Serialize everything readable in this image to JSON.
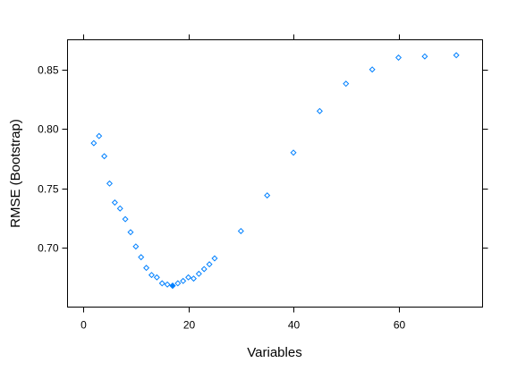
{
  "chart_data": {
    "type": "scatter",
    "xlabel": "Variables",
    "ylabel": "RMSE (Bootstrap)",
    "xlim": [
      -3,
      76
    ],
    "ylim": [
      0.65,
      0.875
    ],
    "x_ticks": [
      0,
      20,
      40,
      60
    ],
    "x_tick_labels": [
      "0",
      "20",
      "40",
      "60"
    ],
    "y_ticks": [
      0.7,
      0.75,
      0.8,
      0.85
    ],
    "y_tick_labels": [
      "0.70",
      "0.75",
      "0.80",
      "0.85"
    ],
    "grid": false,
    "series": [
      {
        "marker": "open-diamond",
        "color": "#0080ff",
        "x": [
          2,
          3,
          4,
          5,
          6,
          7,
          8,
          9,
          10,
          11,
          12,
          13,
          14,
          15,
          16,
          17,
          18,
          19,
          20,
          21,
          22,
          23,
          24,
          25,
          30,
          35,
          40,
          45,
          50,
          55,
          60,
          65,
          71
        ],
        "y": [
          0.788,
          0.794,
          0.777,
          0.754,
          0.738,
          0.733,
          0.724,
          0.713,
          0.701,
          0.692,
          0.683,
          0.677,
          0.675,
          0.67,
          0.669,
          0.668,
          0.67,
          0.672,
          0.675,
          0.674,
          0.678,
          0.682,
          0.686,
          0.691,
          0.714,
          0.744,
          0.78,
          0.815,
          0.838,
          0.85,
          0.86,
          0.861,
          0.862
        ]
      }
    ],
    "highlight": {
      "x": 17,
      "y": 0.668,
      "marker": "filled-diamond",
      "color": "#0080ff"
    }
  }
}
